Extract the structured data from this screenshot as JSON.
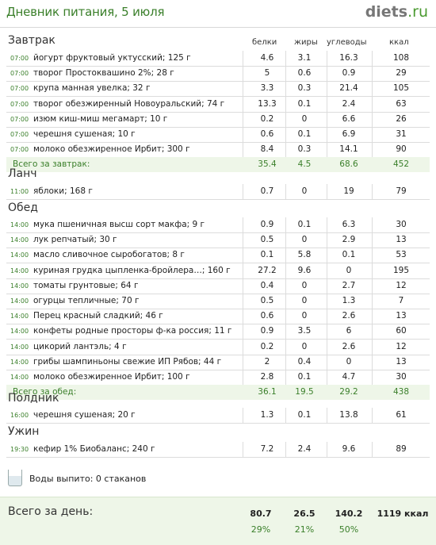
{
  "header": {
    "title": "Дневник питания, 5 июля",
    "logo_name": "diets",
    "logo_tld": ".ru"
  },
  "columns": {
    "b": "белки",
    "f": "жиры",
    "c": "углеводы",
    "k": "ккал"
  },
  "sections": [
    {
      "title": "Завтрак",
      "rows": [
        {
          "time": "07:00",
          "name": "йогурт фруктовый уктусский; 125 г",
          "b": "4.6",
          "f": "3.1",
          "c": "16.3",
          "k": "108"
        },
        {
          "time": "07:00",
          "name": "творог Простоквашино 2%; 28 г",
          "b": "5",
          "f": "0.6",
          "c": "0.9",
          "k": "29"
        },
        {
          "time": "07:00",
          "name": "крупа манная увелка; 32 г",
          "b": "3.3",
          "f": "0.3",
          "c": "21.4",
          "k": "105"
        },
        {
          "time": "07:00",
          "name": "творог обезжиренный Новоуральский; 74 г",
          "b": "13.3",
          "f": "0.1",
          "c": "2.4",
          "k": "63"
        },
        {
          "time": "07:00",
          "name": "изюм киш-миш мегамарт; 10 г",
          "b": "0.2",
          "f": "0",
          "c": "6.6",
          "k": "26"
        },
        {
          "time": "07:00",
          "name": "черешня сушеная; 10 г",
          "b": "0.6",
          "f": "0.1",
          "c": "6.9",
          "k": "31"
        },
        {
          "time": "07:00",
          "name": "молоко обезжиренное Ирбит; 300 г",
          "b": "8.4",
          "f": "0.3",
          "c": "14.1",
          "k": "90"
        }
      ],
      "total": {
        "label": "Всего за завтрак:",
        "b": "35.4",
        "f": "4.5",
        "c": "68.6",
        "k": "452"
      }
    },
    {
      "title": "Ланч",
      "rows": [
        {
          "time": "11:00",
          "name": "яблоки; 168 г",
          "b": "0.7",
          "f": "0",
          "c": "19",
          "k": "79"
        }
      ]
    },
    {
      "title": "Обед",
      "rows": [
        {
          "time": "14:00",
          "name": "мука пшеничная высш сорт макфа; 9 г",
          "b": "0.9",
          "f": "0.1",
          "c": "6.3",
          "k": "30"
        },
        {
          "time": "14:00",
          "name": "лук репчатый; 30 г",
          "b": "0.5",
          "f": "0",
          "c": "2.9",
          "k": "13"
        },
        {
          "time": "14:00",
          "name": "масло сливочное сыробогатов; 8 г",
          "b": "0.1",
          "f": "5.8",
          "c": "0.1",
          "k": "53"
        },
        {
          "time": "14:00",
          "name": "куриная грудка цыпленка-бройлера…; 160 г",
          "b": "27.2",
          "f": "9.6",
          "c": "0",
          "k": "195"
        },
        {
          "time": "14:00",
          "name": "томаты грунтовые; 64 г",
          "b": "0.4",
          "f": "0",
          "c": "2.7",
          "k": "12"
        },
        {
          "time": "14:00",
          "name": "огурцы тепличные; 70 г",
          "b": "0.5",
          "f": "0",
          "c": "1.3",
          "k": "7"
        },
        {
          "time": "14:00",
          "name": "Перец красный сладкий; 46 г",
          "b": "0.6",
          "f": "0",
          "c": "2.6",
          "k": "13"
        },
        {
          "time": "14:00",
          "name": "конфеты родные просторы ф-ка россия; 11 г",
          "b": "0.9",
          "f": "3.5",
          "c": "6",
          "k": "60"
        },
        {
          "time": "14:00",
          "name": "цикорий лантэль; 4 г",
          "b": "0.2",
          "f": "0",
          "c": "2.6",
          "k": "12"
        },
        {
          "time": "14:00",
          "name": "грибы шампиньоны свежие ИП Рябов; 44 г",
          "b": "2",
          "f": "0.4",
          "c": "0",
          "k": "13"
        },
        {
          "time": "14:00",
          "name": "молоко обезжиренное Ирбит; 100 г",
          "b": "2.8",
          "f": "0.1",
          "c": "4.7",
          "k": "30"
        }
      ],
      "total": {
        "label": "Всего за обед:",
        "b": "36.1",
        "f": "19.5",
        "c": "29.2",
        "k": "438"
      }
    },
    {
      "title": "Полдник",
      "rows": [
        {
          "time": "16:00",
          "name": "черешня сушеная; 20 г",
          "b": "1.3",
          "f": "0.1",
          "c": "13.8",
          "k": "61"
        }
      ]
    },
    {
      "title": "Ужин",
      "rows": [
        {
          "time": "19:30",
          "name": "кефир 1% Биобаланс; 240 г",
          "b": "7.2",
          "f": "2.4",
          "c": "9.6",
          "k": "89"
        }
      ]
    }
  ],
  "water": {
    "text": "Воды выпито: 0 стаканов",
    "icon": "glass-icon"
  },
  "day_total": {
    "label": "Всего за день:",
    "b": "80.7",
    "f": "26.5",
    "c": "140.2",
    "k": "1119 ккал",
    "pb": "29%",
    "pf": "21%",
    "pc": "50%"
  },
  "colors": {
    "accent": "#3a7f2a",
    "total_bg": "#eef6e8",
    "row_line": "#dcdcdc"
  }
}
